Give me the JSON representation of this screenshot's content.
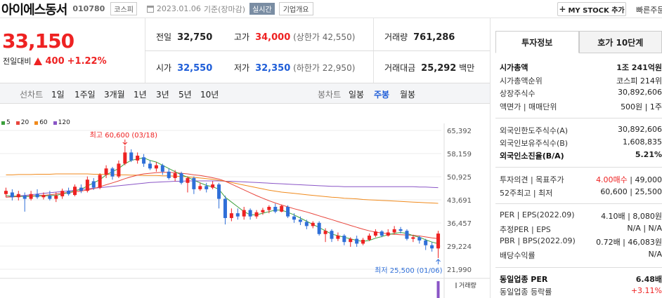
{
  "header": {
    "name": "아이에스동서",
    "code": "010780",
    "market": "코스피",
    "date": "2023.01.06",
    "basis": "기준(장마감)",
    "realtime": "실시간",
    "company_overview": "기업개요",
    "my_stock": "MY STOCK 추가",
    "quick_order": "빠른주문"
  },
  "price": {
    "current": "33,150",
    "change_label": "전일대비",
    "change": "400",
    "change_pct": "+1.22%"
  },
  "quotes": {
    "prev_label": "전일",
    "prev": "32,750",
    "high_label": "고가",
    "high": "34,000",
    "high_limit_label": "(상한가 42,550)",
    "volume_label": "거래량",
    "volume": "761,286",
    "open_label": "시가",
    "open": "32,550",
    "low_label": "저가",
    "low": "32,350",
    "low_limit_label": "(하한가 22,950)",
    "amount_label": "거래대금",
    "amount": "25,292",
    "amount_unit": "백만"
  },
  "toolbar": {
    "line_chart": "선차트",
    "periods": [
      "1일",
      "1주일",
      "3개월",
      "1년",
      "3년",
      "5년",
      "10년"
    ],
    "candle_chart": "봉차트",
    "candle_periods": [
      "일봉",
      "주봉",
      "월봉"
    ],
    "active_candle": "주봉"
  },
  "chart_data": {
    "type": "candlestick",
    "ma_legend": [
      {
        "name": "5",
        "color": "#3ca03c"
      },
      {
        "name": "20",
        "color": "#e8453c"
      },
      {
        "name": "60",
        "color": "#f08a1c"
      },
      {
        "name": "120",
        "color": "#8a55c6"
      }
    ],
    "y_ticks": [
      "65,392",
      "58,159",
      "50,925",
      "43,691",
      "36,457",
      "29,224",
      "21,990"
    ],
    "ylim": [
      21990,
      65392
    ],
    "high_annotation": "최고 60,600 (03/18)",
    "low_annotation": "최저 25,500 (01/06)",
    "volume_label": "거래량",
    "candles": [
      {
        "o": 45500,
        "c": 46500,
        "h": 47500,
        "l": 44500
      },
      {
        "o": 46000,
        "c": 44500,
        "h": 47000,
        "l": 43500
      },
      {
        "o": 44500,
        "c": 45500,
        "h": 46500,
        "l": 43500
      },
      {
        "o": 45000,
        "c": 44000,
        "h": 46000,
        "l": 40000
      },
      {
        "o": 44000,
        "c": 45500,
        "h": 46500,
        "l": 43500
      },
      {
        "o": 45500,
        "c": 44500,
        "h": 47000,
        "l": 44000
      },
      {
        "o": 44500,
        "c": 45200,
        "h": 46000,
        "l": 43800
      },
      {
        "o": 45000,
        "c": 44000,
        "h": 46500,
        "l": 43500
      },
      {
        "o": 44000,
        "c": 45000,
        "h": 46000,
        "l": 43000
      },
      {
        "o": 44800,
        "c": 46500,
        "h": 47200,
        "l": 44000
      },
      {
        "o": 46500,
        "c": 45500,
        "h": 47500,
        "l": 45000
      },
      {
        "o": 45200,
        "c": 47800,
        "h": 48500,
        "l": 44800
      },
      {
        "o": 47500,
        "c": 46500,
        "h": 48500,
        "l": 45800
      },
      {
        "o": 46500,
        "c": 50000,
        "h": 51000,
        "l": 46000
      },
      {
        "o": 49500,
        "c": 47500,
        "h": 50500,
        "l": 46800
      },
      {
        "o": 47500,
        "c": 51500,
        "h": 52000,
        "l": 47000
      },
      {
        "o": 51500,
        "c": 53500,
        "h": 54500,
        "l": 50500
      },
      {
        "o": 53500,
        "c": 51000,
        "h": 54000,
        "l": 50000
      },
      {
        "o": 51000,
        "c": 55000,
        "h": 56000,
        "l": 50500
      },
      {
        "o": 55000,
        "c": 58500,
        "h": 60600,
        "l": 54500
      },
      {
        "o": 58500,
        "c": 56000,
        "h": 59500,
        "l": 55500
      },
      {
        "o": 56000,
        "c": 57500,
        "h": 58500,
        "l": 55000
      },
      {
        "o": 57000,
        "c": 55000,
        "h": 58000,
        "l": 54000
      },
      {
        "o": 55000,
        "c": 53500,
        "h": 56000,
        "l": 53000
      },
      {
        "o": 53500,
        "c": 54500,
        "h": 55500,
        "l": 52500
      },
      {
        "o": 54500,
        "c": 52500,
        "h": 55000,
        "l": 51500
      },
      {
        "o": 52500,
        "c": 50500,
        "h": 53500,
        "l": 50000
      },
      {
        "o": 50500,
        "c": 52000,
        "h": 53000,
        "l": 49500
      },
      {
        "o": 52000,
        "c": 49000,
        "h": 52500,
        "l": 48500
      },
      {
        "o": 49000,
        "c": 50500,
        "h": 51000,
        "l": 46000
      },
      {
        "o": 50500,
        "c": 47000,
        "h": 51000,
        "l": 45500
      },
      {
        "o": 47000,
        "c": 48000,
        "h": 49000,
        "l": 46500
      },
      {
        "o": 48000,
        "c": 47000,
        "h": 49000,
        "l": 46000
      },
      {
        "o": 47500,
        "c": 48500,
        "h": 49500,
        "l": 47000
      },
      {
        "o": 48500,
        "c": 44000,
        "h": 49000,
        "l": 41000
      },
      {
        "o": 44000,
        "c": 38000,
        "h": 45000,
        "l": 36000
      },
      {
        "o": 38000,
        "c": 39500,
        "h": 41000,
        "l": 37000
      },
      {
        "o": 39500,
        "c": 38500,
        "h": 41000,
        "l": 37500
      },
      {
        "o": 38500,
        "c": 40500,
        "h": 41500,
        "l": 37500
      },
      {
        "o": 40500,
        "c": 38500,
        "h": 41000,
        "l": 37500
      },
      {
        "o": 38500,
        "c": 39800,
        "h": 40500,
        "l": 37800
      },
      {
        "o": 39800,
        "c": 40500,
        "h": 41200,
        "l": 39000
      },
      {
        "o": 40500,
        "c": 41500,
        "h": 42000,
        "l": 39500
      },
      {
        "o": 41500,
        "c": 40000,
        "h": 42500,
        "l": 39500
      },
      {
        "o": 40000,
        "c": 41800,
        "h": 42200,
        "l": 39800
      },
      {
        "o": 41500,
        "c": 38500,
        "h": 42000,
        "l": 38000
      },
      {
        "o": 38500,
        "c": 37500,
        "h": 39500,
        "l": 36500
      },
      {
        "o": 37500,
        "c": 36800,
        "h": 38500,
        "l": 35800
      },
      {
        "o": 36800,
        "c": 35500,
        "h": 37500,
        "l": 34500
      },
      {
        "o": 35500,
        "c": 36500,
        "h": 37000,
        "l": 34800
      },
      {
        "o": 36500,
        "c": 33000,
        "h": 37000,
        "l": 32500
      },
      {
        "o": 33000,
        "c": 34000,
        "h": 34800,
        "l": 30500
      },
      {
        "o": 34000,
        "c": 31500,
        "h": 34500,
        "l": 30500
      },
      {
        "o": 31500,
        "c": 32500,
        "h": 33500,
        "l": 30800
      },
      {
        "o": 32500,
        "c": 30500,
        "h": 33000,
        "l": 29500
      },
      {
        "o": 30500,
        "c": 31500,
        "h": 32000,
        "l": 29000
      },
      {
        "o": 31500,
        "c": 30000,
        "h": 32500,
        "l": 29000
      },
      {
        "o": 30000,
        "c": 31200,
        "h": 31800,
        "l": 29500
      },
      {
        "o": 31200,
        "c": 32500,
        "h": 33200,
        "l": 30800
      },
      {
        "o": 32500,
        "c": 33800,
        "h": 34500,
        "l": 32000
      },
      {
        "o": 33800,
        "c": 32500,
        "h": 34200,
        "l": 32000
      },
      {
        "o": 32500,
        "c": 33500,
        "h": 34500,
        "l": 32200
      },
      {
        "o": 33500,
        "c": 34500,
        "h": 35500,
        "l": 33000
      },
      {
        "o": 34500,
        "c": 34000,
        "h": 35200,
        "l": 33200
      },
      {
        "o": 34000,
        "c": 31500,
        "h": 34500,
        "l": 31000
      },
      {
        "o": 31500,
        "c": 32000,
        "h": 32800,
        "l": 30500
      },
      {
        "o": 32000,
        "c": 31000,
        "h": 32500,
        "l": 30000
      },
      {
        "o": 31000,
        "c": 29500,
        "h": 31500,
        "l": 28000
      },
      {
        "o": 29500,
        "c": 28500,
        "h": 30500,
        "l": 27500
      },
      {
        "o": 28500,
        "c": 33150,
        "h": 34000,
        "l": 25500
      }
    ],
    "ma5": [
      45000,
      44800,
      44900,
      44700,
      44800,
      44900,
      44900,
      45000,
      45100,
      45500,
      46000,
      46500,
      47000,
      48000,
      49000,
      50000,
      51500,
      52500,
      53500,
      55000,
      56000,
      56500,
      56800,
      56000,
      55500,
      54500,
      53500,
      52500,
      51500,
      50800,
      49800,
      49000,
      48200,
      47800,
      47000,
      44500,
      43000,
      41500,
      40000,
      39000,
      39000,
      39500,
      40000,
      40500,
      40500,
      39800,
      39000,
      38000,
      37000,
      36000,
      35000,
      34000,
      33000,
      32500,
      32000,
      31500,
      31000,
      30700,
      31000,
      31700,
      32200,
      32800,
      33200,
      33500,
      33200,
      32500,
      32000,
      31200,
      30500,
      30000
    ],
    "ma20": [
      44500,
      44600,
      44700,
      44800,
      44900,
      45000,
      45100,
      45300,
      45500,
      45800,
      46000,
      46200,
      46400,
      46800,
      47200,
      47800,
      48400,
      49000,
      49600,
      50300,
      50900,
      51400,
      51800,
      52000,
      52200,
      52300,
      52300,
      52200,
      52000,
      51800,
      51500,
      51300,
      51000,
      50600,
      50200,
      49500,
      48600,
      47700,
      46800,
      45900,
      45000,
      44200,
      43400,
      42700,
      42100,
      41500,
      40900,
      40400,
      39900,
      39300,
      38700,
      38100,
      37500,
      36900,
      36300,
      35700,
      35100,
      34500,
      34000,
      33600,
      33300,
      33100,
      32900,
      32800,
      32700,
      32600,
      32400,
      32100,
      31800,
      31600
    ],
    "ma60": [
      51500,
      51500,
      51600,
      51600,
      51600,
      51700,
      51700,
      51700,
      51800,
      51800,
      51800,
      51800,
      51800,
      51800,
      51700,
      51700,
      51600,
      51600,
      51500,
      51500,
      51400,
      51400,
      51300,
      51300,
      51300,
      51200,
      51200,
      51100,
      51000,
      50900,
      50700,
      50500,
      50300,
      50100,
      49800,
      49500,
      49100,
      48700,
      48300,
      47900,
      47500,
      47100,
      46700,
      46400,
      46100,
      45900,
      45700,
      45500,
      45300,
      45100,
      44900,
      44700,
      44500,
      44400,
      44200,
      44100,
      44000,
      43800,
      43700,
      43600,
      43500,
      43400,
      43300,
      43200,
      43100,
      43000,
      42900,
      42800,
      42700,
      42600
    ],
    "ma120": [
      44500,
      44700,
      44900,
      45100,
      45300,
      45500,
      45700,
      45900,
      46100,
      46300,
      46500,
      46700,
      46900,
      47100,
      47300,
      47500,
      47700,
      47900,
      48100,
      48300,
      48500,
      48700,
      48900,
      49100,
      49200,
      49300,
      49400,
      49500,
      49500,
      49600,
      49600,
      49600,
      49600,
      49600,
      49600,
      49500,
      49500,
      49400,
      49300,
      49200,
      49100,
      49000,
      48900,
      48800,
      48700,
      48600,
      48500,
      48400,
      48300,
      48200,
      48100,
      48000,
      47900,
      47900,
      47800,
      47800,
      47800,
      47800,
      47800,
      47800,
      47800,
      47800,
      47800,
      47800,
      47800,
      47800,
      47700,
      47700,
      47600,
      47500
    ]
  },
  "side": {
    "tab_active": "투자정보",
    "tab_other": "호가 10단계",
    "rows": [
      {
        "k": "시가총액",
        "v": "1조 241억원",
        "bold": true
      },
      {
        "k": "시가총액순위",
        "v": "코스피 214위"
      },
      {
        "k": "상장주식수",
        "v": "30,892,606"
      },
      {
        "k": "액면가 | 매매단위",
        "v": "500원 | 1주"
      },
      {
        "k": "외국인한도주식수(A)",
        "v": "30,892,606"
      },
      {
        "k": "외국인보유주식수(B)",
        "v": "1,608,835"
      },
      {
        "k": "외국인소진율(B/A)",
        "v": "5.21%",
        "bold": true
      },
      {
        "k": "투자의견 | 목표주가",
        "v1": "4.00매수",
        "v2": "| 49,000"
      },
      {
        "k": "52주최고 | 최저",
        "v": "60,600 | 25,500"
      },
      {
        "k": "PER | EPS(2022.09)",
        "v": "4.10배 | 8,080원"
      },
      {
        "k": "추정PER | EPS",
        "v": "N/A | N/A"
      },
      {
        "k": "PBR | BPS(2022.09)",
        "v": "0.72배 | 46,083원"
      },
      {
        "k": "배당수익률",
        "v": "N/A"
      },
      {
        "k": "동일업종 PER",
        "v": "6.48배",
        "bold": true
      },
      {
        "k": "동일업종 등락률",
        "v": "+3.11%"
      }
    ]
  }
}
